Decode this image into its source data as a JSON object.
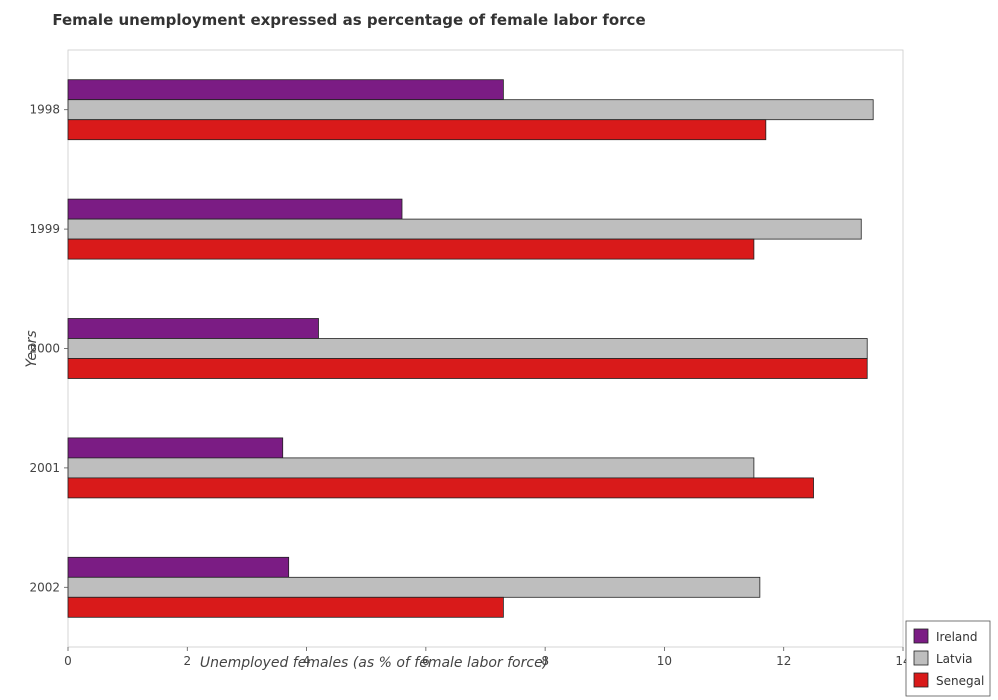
{
  "chart_data": {
    "type": "bar",
    "orientation": "horizontal",
    "title": "Female unemployment expressed as percentage of female labor force",
    "xlabel": "Unemployed females (as % of female labor force)",
    "ylabel": "Years",
    "categories": [
      "1998",
      "1999",
      "2000",
      "2001",
      "2002"
    ],
    "xlim": [
      0,
      14
    ],
    "xticks": [
      0,
      2,
      4,
      6,
      8,
      10,
      12,
      14
    ],
    "legend_position": "bottom-right",
    "series": [
      {
        "name": "Ireland",
        "color": "#7B1C84",
        "values": [
          7.3,
          5.6,
          4.2,
          3.6,
          3.7
        ]
      },
      {
        "name": "Latvia",
        "color": "#BEBEBE",
        "values": [
          13.5,
          13.3,
          13.4,
          11.5,
          11.6
        ]
      },
      {
        "name": "Senegal",
        "color": "#D91A1A",
        "values": [
          11.7,
          11.5,
          13.4,
          12.5,
          7.3
        ]
      }
    ]
  }
}
